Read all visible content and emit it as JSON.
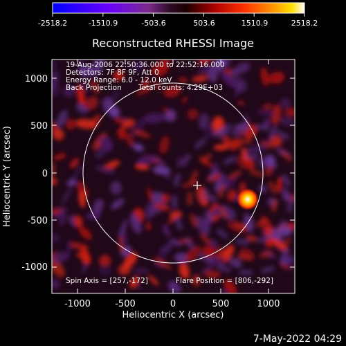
{
  "colorbar": {
    "tick_labels": [
      "-2518.2",
      "-1510.9",
      "-503.6",
      "503.6",
      "1510.9",
      "2518.2"
    ],
    "colors": [
      "#0000ff",
      "#6a00ff",
      "#7a2a8a",
      "#3a0a2a",
      "#000000",
      "#7a0000",
      "#ff2a00",
      "#ff9a00",
      "#ffe000",
      "#ffffff"
    ]
  },
  "plot": {
    "title": "Reconstructed RHESSI Image",
    "info_lines": [
      "19-Aug-2006 22:50:36.000 to 22:52:16.000",
      "Detectors: 7F 8F 9F, Att 0",
      "Energy Range: 6.0 - 12.0 keV"
    ],
    "method": "Back Projection",
    "total_counts": "Total counts: 4.29E+03",
    "spin_axis": "Spin Axis = [257,-172]",
    "flare_position": "Flare Position = [806,-292]",
    "xlabel": "Heliocentric X (arcsec)",
    "ylabel": "Heliocentric Y (arcsec)",
    "x_ticks": [
      "-1000",
      "-500",
      "0",
      "500",
      "1000"
    ],
    "y_ticks": [
      "1000",
      "500",
      "0",
      "-500",
      "-1000"
    ],
    "source_marker_color": "#ffffff"
  },
  "footer": {
    "timestamp": "7-May-2022 04:29"
  }
}
